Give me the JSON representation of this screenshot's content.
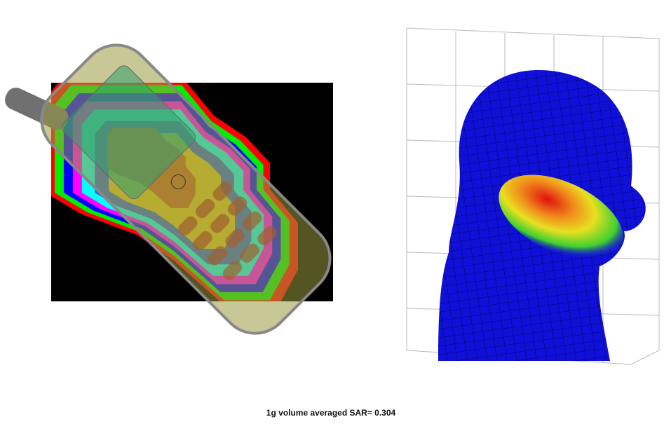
{
  "caption": "1g volume averaged SAR= 0.304"
}
